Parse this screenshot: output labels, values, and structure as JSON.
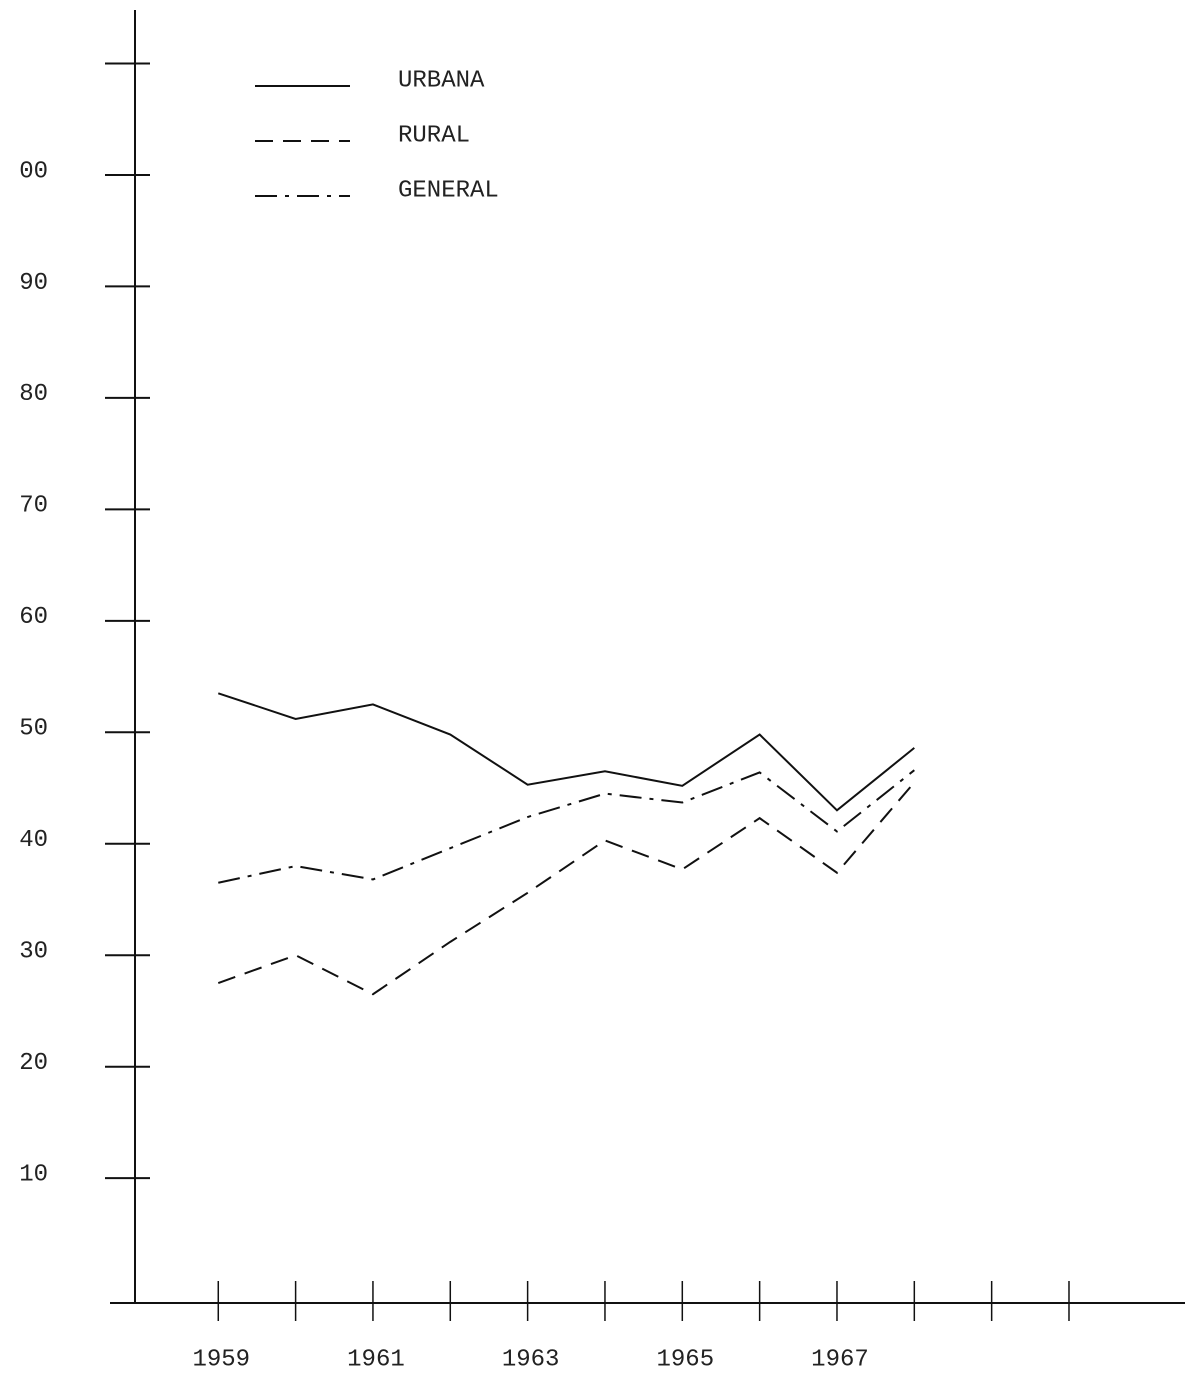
{
  "chart_data": {
    "type": "line",
    "x": [
      1959,
      1960,
      1961,
      1962,
      1963,
      1964,
      1965,
      1966,
      1967,
      1968
    ],
    "series": [
      {
        "name": "URBANA",
        "color": "#111111",
        "dash": "solid",
        "values": [
          53.5,
          51.2,
          52.5,
          49.8,
          45.3,
          46.5,
          45.2,
          49.8,
          43.0,
          48.6
        ]
      },
      {
        "name": "RURAL",
        "color": "#111111",
        "dash": "dashed",
        "values": [
          27.5,
          30.0,
          26.5,
          31.2,
          35.6,
          40.3,
          37.7,
          42.3,
          37.4,
          45.5
        ]
      },
      {
        "name": "GENERAL",
        "color": "#111111",
        "dash": "dashdot",
        "values": [
          36.5,
          38.0,
          36.8,
          39.6,
          42.4,
          44.5,
          43.7,
          46.4,
          41.1,
          46.6
        ]
      }
    ],
    "xlim": [
      1957.6,
      1971.5
    ],
    "xticks": [
      1959,
      {
        "value": 1960,
        "label": null
      },
      1961,
      {
        "value": 1962,
        "label": null
      },
      1963,
      {
        "value": 1964,
        "label": null
      },
      1965,
      {
        "value": 1966,
        "label": null
      },
      1967,
      {
        "value": 1968,
        "label": null
      },
      {
        "value": 1969,
        "label": null
      },
      {
        "value": 1970,
        "label": null
      }
    ],
    "ylim": [
      -1.2,
      114.8
    ],
    "yticks": [
      10,
      20,
      30,
      40,
      50,
      60,
      70,
      80,
      90,
      {
        "value": 100,
        "label": "00"
      },
      {
        "value": 110,
        "label": null
      }
    ],
    "legend": "top-left"
  }
}
